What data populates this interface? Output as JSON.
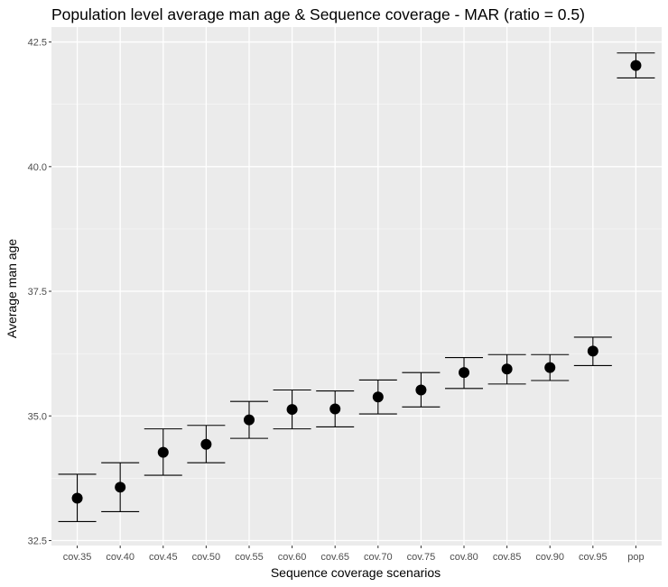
{
  "chart_data": {
    "type": "scatter",
    "title": "Population level average man age & Sequence coverage - MAR (ratio = 0.5)",
    "xlabel": "Sequence coverage scenarios",
    "ylabel": "Average man age",
    "categories": [
      "cov.35",
      "cov.40",
      "cov.45",
      "cov.50",
      "cov.55",
      "cov.60",
      "cov.65",
      "cov.70",
      "cov.75",
      "cov.80",
      "cov.85",
      "cov.90",
      "cov.95",
      "pop"
    ],
    "values": [
      33.35,
      33.57,
      34.27,
      34.43,
      34.92,
      35.13,
      35.14,
      35.38,
      35.52,
      35.87,
      35.94,
      35.97,
      36.3,
      42.03
    ],
    "error_lower": [
      32.88,
      33.08,
      33.81,
      34.06,
      34.55,
      34.74,
      34.78,
      35.04,
      35.18,
      35.55,
      35.64,
      35.71,
      36.01,
      41.78
    ],
    "error_upper": [
      33.83,
      34.06,
      34.74,
      34.81,
      35.29,
      35.52,
      35.5,
      35.72,
      35.87,
      36.17,
      36.23,
      36.23,
      36.58,
      42.28
    ],
    "ylim": [
      32.4,
      42.8
    ],
    "yticks": [
      "32.5",
      "35.0",
      "37.5",
      "40.0",
      "42.5"
    ],
    "grid": true,
    "theme": {
      "panel_background": "#ebebeb",
      "grid_major": "#ffffff",
      "point_color": "#000000",
      "tick_text_color": "#4d4d4d"
    }
  }
}
